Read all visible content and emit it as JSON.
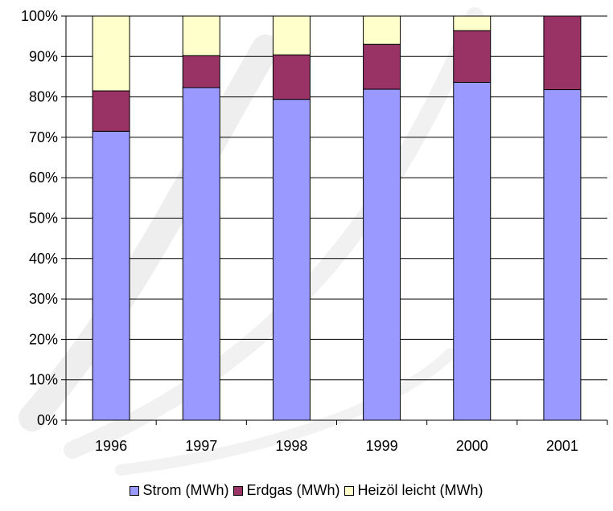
{
  "chart_data": {
    "type": "bar",
    "stacked": true,
    "normalized": true,
    "categories": [
      "1996",
      "1997",
      "1998",
      "1999",
      "2000",
      "2001"
    ],
    "series": [
      {
        "name": "Strom (MWh)",
        "color": "#9999ff",
        "values": [
          71.5,
          82.3,
          79.4,
          81.9,
          83.6,
          81.8
        ]
      },
      {
        "name": "Erdgas (MWh)",
        "color": "#993366",
        "values": [
          10.0,
          7.9,
          11.0,
          11.1,
          12.8,
          18.2
        ]
      },
      {
        "name": "Heizöl leicht (MWh)",
        "color": "#ffffcc",
        "values": [
          18.5,
          9.8,
          9.6,
          7.0,
          3.6,
          0.0
        ]
      }
    ],
    "ylim": [
      0,
      100
    ],
    "yticks": [
      "0%",
      "10%",
      "20%",
      "30%",
      "40%",
      "50%",
      "60%",
      "70%",
      "80%",
      "90%",
      "100%"
    ],
    "grid": true,
    "legend_position": "bottom"
  }
}
